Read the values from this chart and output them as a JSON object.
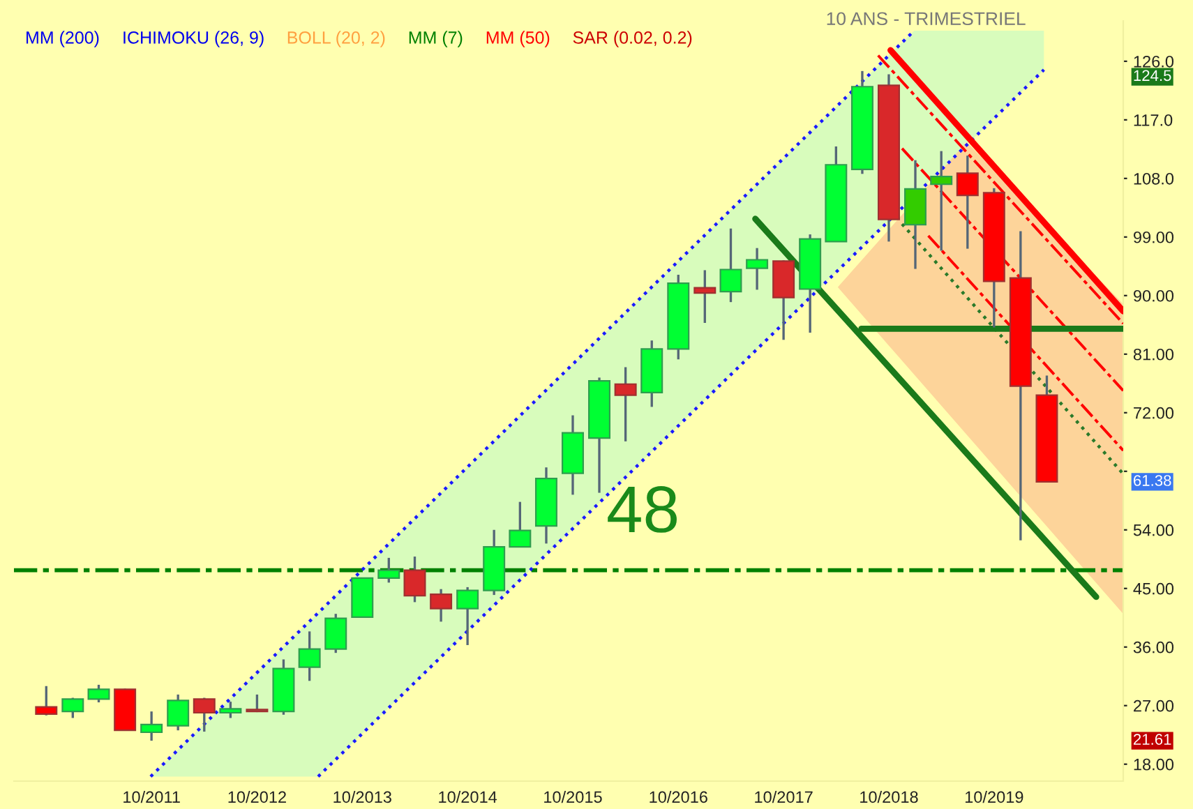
{
  "chart_data": {
    "type": "candlestick",
    "title": "10 ANS - TRIMESTRIEL",
    "x": [
      "2010-10",
      "2011-01",
      "2011-04",
      "2011-07",
      "2011-10",
      "2012-01",
      "2012-04",
      "2012-07",
      "2012-10",
      "2013-01",
      "2013-04",
      "2013-07",
      "2013-10",
      "2014-01",
      "2014-04",
      "2014-07",
      "2014-10",
      "2015-01",
      "2015-04",
      "2015-07",
      "2015-10",
      "2016-01",
      "2016-04",
      "2016-07",
      "2016-10",
      "2017-01",
      "2017-04",
      "2017-07",
      "2017-10",
      "2018-01",
      "2018-04",
      "2018-07",
      "2018-10",
      "2019-01",
      "2019-04",
      "2019-07",
      "2019-10",
      "2020-01",
      "2020-04"
    ],
    "ohlc": [
      [
        26.8,
        30.0,
        25.5,
        25.7
      ],
      [
        26.1,
        28.2,
        25.1,
        28.0
      ],
      [
        28.0,
        30.2,
        27.5,
        29.5
      ],
      [
        29.5,
        29.6,
        23.2,
        23.2
      ],
      [
        22.9,
        26.1,
        21.61,
        24.1
      ],
      [
        23.9,
        28.7,
        23.2,
        27.8
      ],
      [
        28.0,
        28.2,
        23.0,
        25.9
      ],
      [
        25.9,
        27.6,
        25.1,
        26.5
      ],
      [
        26.4,
        28.7,
        26.0,
        26.1
      ],
      [
        26.1,
        34.1,
        25.6,
        32.7
      ],
      [
        32.9,
        38.4,
        30.8,
        35.7
      ],
      [
        35.7,
        41.1,
        35.1,
        40.4
      ],
      [
        40.6,
        46.6,
        40.6,
        46.6
      ],
      [
        46.6,
        49.7,
        45.9,
        47.8
      ],
      [
        47.8,
        49.9,
        42.9,
        43.9
      ],
      [
        44.1,
        44.9,
        39.9,
        41.9
      ],
      [
        41.9,
        45.2,
        36.3,
        44.7
      ],
      [
        44.7,
        54.0,
        44.0,
        51.4
      ],
      [
        51.4,
        58.3,
        51.4,
        53.9
      ],
      [
        54.6,
        63.6,
        51.9,
        61.9
      ],
      [
        62.7,
        71.6,
        59.4,
        68.9
      ],
      [
        68.1,
        77.4,
        59.7,
        76.9
      ],
      [
        76.4,
        79.0,
        67.6,
        74.7
      ],
      [
        75.1,
        83.1,
        72.9,
        81.8
      ],
      [
        81.8,
        93.2,
        80.2,
        91.9
      ],
      [
        91.2,
        93.9,
        85.8,
        90.4
      ],
      [
        90.6,
        100.3,
        89.0,
        94.0
      ],
      [
        94.2,
        97.3,
        90.9,
        95.5
      ],
      [
        95.3,
        95.4,
        83.2,
        89.7
      ],
      [
        91.0,
        99.4,
        84.3,
        98.7
      ],
      [
        98.3,
        112.9,
        98.3,
        110.1
      ],
      [
        109.4,
        124.5,
        108.7,
        122.1
      ],
      [
        122.3,
        124.0,
        98.3,
        101.7
      ],
      [
        100.9,
        110.8,
        94.1,
        106.4
      ],
      [
        107.1,
        112.2,
        96.9,
        108.3
      ],
      [
        108.8,
        111.5,
        97.2,
        105.4
      ],
      [
        105.8,
        106.5,
        85.1,
        92.2
      ],
      [
        92.7,
        99.9,
        52.4,
        76.1
      ],
      [
        74.7,
        77.7,
        61.38,
        61.38
      ]
    ],
    "colors": [
      "#ff0000",
      "#00ff33",
      "#00ff33",
      "#ff0000",
      "#00ff33",
      "#00ff33",
      "#d9282a",
      "#00ff33",
      "#a05040",
      "#00ff33",
      "#00ff33",
      "#00ff33",
      "#00ff33",
      "#00ff33",
      "#d9282a",
      "#d9282a",
      "#00ff33",
      "#00ff33",
      "#00ff33",
      "#00ff33",
      "#00ff33",
      "#00ff33",
      "#d9282a",
      "#00ff33",
      "#00ff33",
      "#d9282a",
      "#00ff33",
      "#00ff33",
      "#d9282a",
      "#00ff33",
      "#00ff33",
      "#00ff33",
      "#d9282a",
      "#33cc00",
      "#33cc00",
      "#ff0000",
      "#ff0000",
      "#ff0000",
      "#ff0000"
    ],
    "series": [
      {
        "type": "area",
        "color": "#d8fcbc",
        "x": [
          "2011-09-28",
          "2013-05-01",
          "2020-03-22",
          "2020-03-22",
          "2018-12-28"
        ],
        "values": [
          16.1,
          16.1,
          124.7,
          130.7,
          130.7
        ]
      },
      {
        "type": "area",
        "color": "#fdd49a",
        "x": [
          "2018-04-07",
          "2019-06-28",
          "2020-12-22",
          "2020-12-22"
        ],
        "values": [
          91.3,
          113.6,
          88.7,
          41.1
        ]
      },
      {
        "type": "line",
        "color": "#1a1aff",
        "line_style": "dotted",
        "x": [
          "2011-09-28",
          "2018-12-28"
        ],
        "values": [
          16.1,
          130.7
        ]
      },
      {
        "type": "line",
        "color": "#1a1aff",
        "line_style": "dotted",
        "x": [
          "2013-05-01",
          "2020-03-22"
        ],
        "values": [
          16.1,
          124.7
        ]
      },
      {
        "type": "line",
        "color": "#ff0000",
        "line_style": "solid",
        "x": [
          "2018-10-07",
          "2020-12-22"
        ],
        "values": [
          127.7,
          87.6
        ]
      },
      {
        "type": "line",
        "color": "#ff0000",
        "line_style": "dashdot",
        "x": [
          "2018-08-25",
          "2020-12-22"
        ],
        "values": [
          126.9,
          85.7
        ]
      },
      {
        "type": "line",
        "color": "#ff0000",
        "line_style": "dashdot",
        "x": [
          "2018-11-16",
          "2020-12-22"
        ],
        "values": [
          112.6,
          75.4
        ]
      },
      {
        "type": "line",
        "color": "#ff0000",
        "line_style": "dashdot",
        "x": [
          "2019-02-15",
          "2020-12-22"
        ],
        "values": [
          99.2,
          66.2
        ]
      },
      {
        "type": "line",
        "color": "#2a7a2a",
        "line_style": "dotted",
        "x": [
          "2018-11-16",
          "2020-12-22"
        ],
        "values": [
          101.0,
          62.6
        ]
      },
      {
        "type": "line",
        "color": "#1a7a1a",
        "line_style": "solid",
        "x": [
          "2017-06-25",
          "2020-09-19"
        ],
        "values": [
          101.8,
          43.7
        ]
      },
      {
        "type": "line",
        "color": "#1a7a1a",
        "line_style": "solid",
        "x": [
          "2018-06-28",
          "2020-12-22"
        ],
        "values": [
          84.9,
          84.9
        ]
      }
    ],
    "ref_lines": [
      {
        "axis": "y",
        "value": 47.8,
        "color": "#008000",
        "line_style": "dashdot"
      }
    ],
    "annotations": [
      "MM (200)",
      "ICHIMOKU (26, 9)",
      "BOLL (20, 2)",
      "MM (7)",
      "MM (50)",
      "SAR (0.02, 0.2)",
      "48",
      "124.5",
      "61.38",
      "21.61"
    ],
    "xlim": [
      "2010-06-11",
      "2020-12-22"
    ],
    "xticks": [
      {
        "value": "2011-10",
        "label": "10/2011"
      },
      {
        "value": "2012-10",
        "label": "10/2012"
      },
      {
        "value": "2013-10",
        "label": "10/2013"
      },
      {
        "value": "2014-10",
        "label": "10/2014"
      },
      {
        "value": "2015-10",
        "label": "10/2015"
      },
      {
        "value": "2016-10",
        "label": "10/2016"
      },
      {
        "value": "2017-10",
        "label": "10/2017"
      },
      {
        "value": "2018-10",
        "label": "10/2018"
      },
      {
        "value": "2019-10",
        "label": "10/2019"
      }
    ],
    "ylim": [
      15.4,
      132.2
    ],
    "yticks": [
      {
        "value": 126,
        "label": "126.0"
      },
      {
        "value": 117,
        "label": "117.0"
      },
      {
        "value": 108,
        "label": "108.0"
      },
      {
        "value": 99,
        "label": "99.00"
      },
      {
        "value": 90,
        "label": "90.00"
      },
      {
        "value": 81,
        "label": "81.00"
      },
      {
        "value": 72,
        "label": "72.00"
      },
      {
        "value": 63,
        "label": null
      },
      {
        "value": 54,
        "label": "54.00"
      },
      {
        "value": 45,
        "label": "45.00"
      },
      {
        "value": 36,
        "label": "36.00"
      },
      {
        "value": 27,
        "label": "27.00"
      },
      {
        "value": 18,
        "label": "18.00"
      }
    ],
    "grid": false,
    "legend": false
  }
}
